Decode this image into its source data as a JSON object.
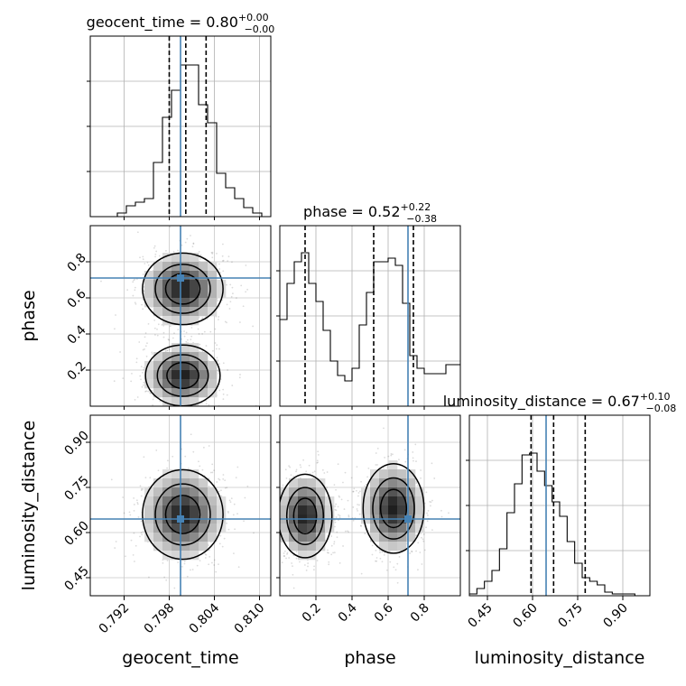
{
  "chart_data": {
    "type": "corner",
    "grid": true,
    "truth_color": "#4682b4",
    "params": [
      {
        "name": "geocent_time",
        "range": [
          0.7875,
          0.8115
        ],
        "ticks": [
          0.792,
          0.798,
          0.804,
          0.81
        ],
        "tick_labels": [
          "0.792",
          "0.798",
          "0.804",
          "0.810"
        ],
        "median": "0.80",
        "plus": "+0.00",
        "minus": "−0.00",
        "truth": 0.7995,
        "quantiles": [
          0.798,
          0.8002,
          0.8029
        ],
        "hist_edges_start": 0.7875,
        "hist_bin_width": 0.0012,
        "hist": [
          0,
          0,
          0,
          0.02,
          0.06,
          0.08,
          0.1,
          0.3,
          0.55,
          0.7,
          0.84,
          0.84,
          0.62,
          0.52,
          0.24,
          0.16,
          0.1,
          0.05,
          0.02,
          0
        ]
      },
      {
        "name": "phase",
        "range": [
          0.0,
          1.0
        ],
        "ticks": [
          0.2,
          0.4,
          0.6,
          0.8
        ],
        "tick_labels": [
          "0.2",
          "0.4",
          "0.6",
          "0.8"
        ],
        "median": "0.52",
        "plus": "+0.22",
        "minus": "−0.38",
        "truth": 0.71,
        "quantiles": [
          0.14,
          0.52,
          0.74
        ],
        "hist_edges_start": 0.0,
        "hist_bin_width": 0.04,
        "hist": [
          0.48,
          0.68,
          0.8,
          0.85,
          0.68,
          0.58,
          0.42,
          0.25,
          0.17,
          0.14,
          0.21,
          0.45,
          0.63,
          0.8,
          0.8,
          0.82,
          0.78,
          0.57,
          0.28,
          0.21,
          0.18,
          0.18,
          0.18,
          0.23,
          0.23
        ]
      },
      {
        "name": "luminosity_distance",
        "range": [
          0.39,
          0.99
        ],
        "ticks": [
          0.45,
          0.6,
          0.75,
          0.9
        ],
        "tick_labels": [
          "0.45",
          "0.60",
          "0.75",
          "0.90"
        ],
        "median": "0.67",
        "plus": "+0.10",
        "minus": "−0.08",
        "truth": 0.645,
        "quantiles": [
          0.595,
          0.67,
          0.775
        ],
        "hist_edges_start": 0.39,
        "hist_bin_width": 0.025,
        "hist": [
          0.01,
          0.04,
          0.08,
          0.14,
          0.26,
          0.46,
          0.62,
          0.78,
          0.79,
          0.69,
          0.61,
          0.52,
          0.44,
          0.3,
          0.18,
          0.1,
          0.08,
          0.06,
          0.02,
          0.01,
          0.01,
          0.01,
          0.0,
          0.0
        ]
      }
    ],
    "densities": [
      {
        "x": "geocent_time",
        "y": "phase",
        "modes": [
          {
            "cx": 0.7998,
            "cy": 0.65,
            "sx": 0.0027,
            "sy": 0.1,
            "w": 1.0
          },
          {
            "cx": 0.7998,
            "cy": 0.17,
            "sx": 0.0025,
            "sy": 0.085,
            "w": 1.0
          }
        ]
      },
      {
        "x": "geocent_time",
        "y": "luminosity_distance",
        "modes": [
          {
            "cx": 0.7998,
            "cy": 0.66,
            "sx": 0.0027,
            "sy": 0.075,
            "w": 1.0
          }
        ]
      },
      {
        "x": "phase",
        "y": "luminosity_distance",
        "modes": [
          {
            "cx": 0.14,
            "cy": 0.655,
            "sx": 0.075,
            "sy": 0.07,
            "w": 1.0
          },
          {
            "cx": 0.63,
            "cy": 0.68,
            "sx": 0.085,
            "sy": 0.075,
            "w": 1.0
          }
        ]
      }
    ]
  }
}
